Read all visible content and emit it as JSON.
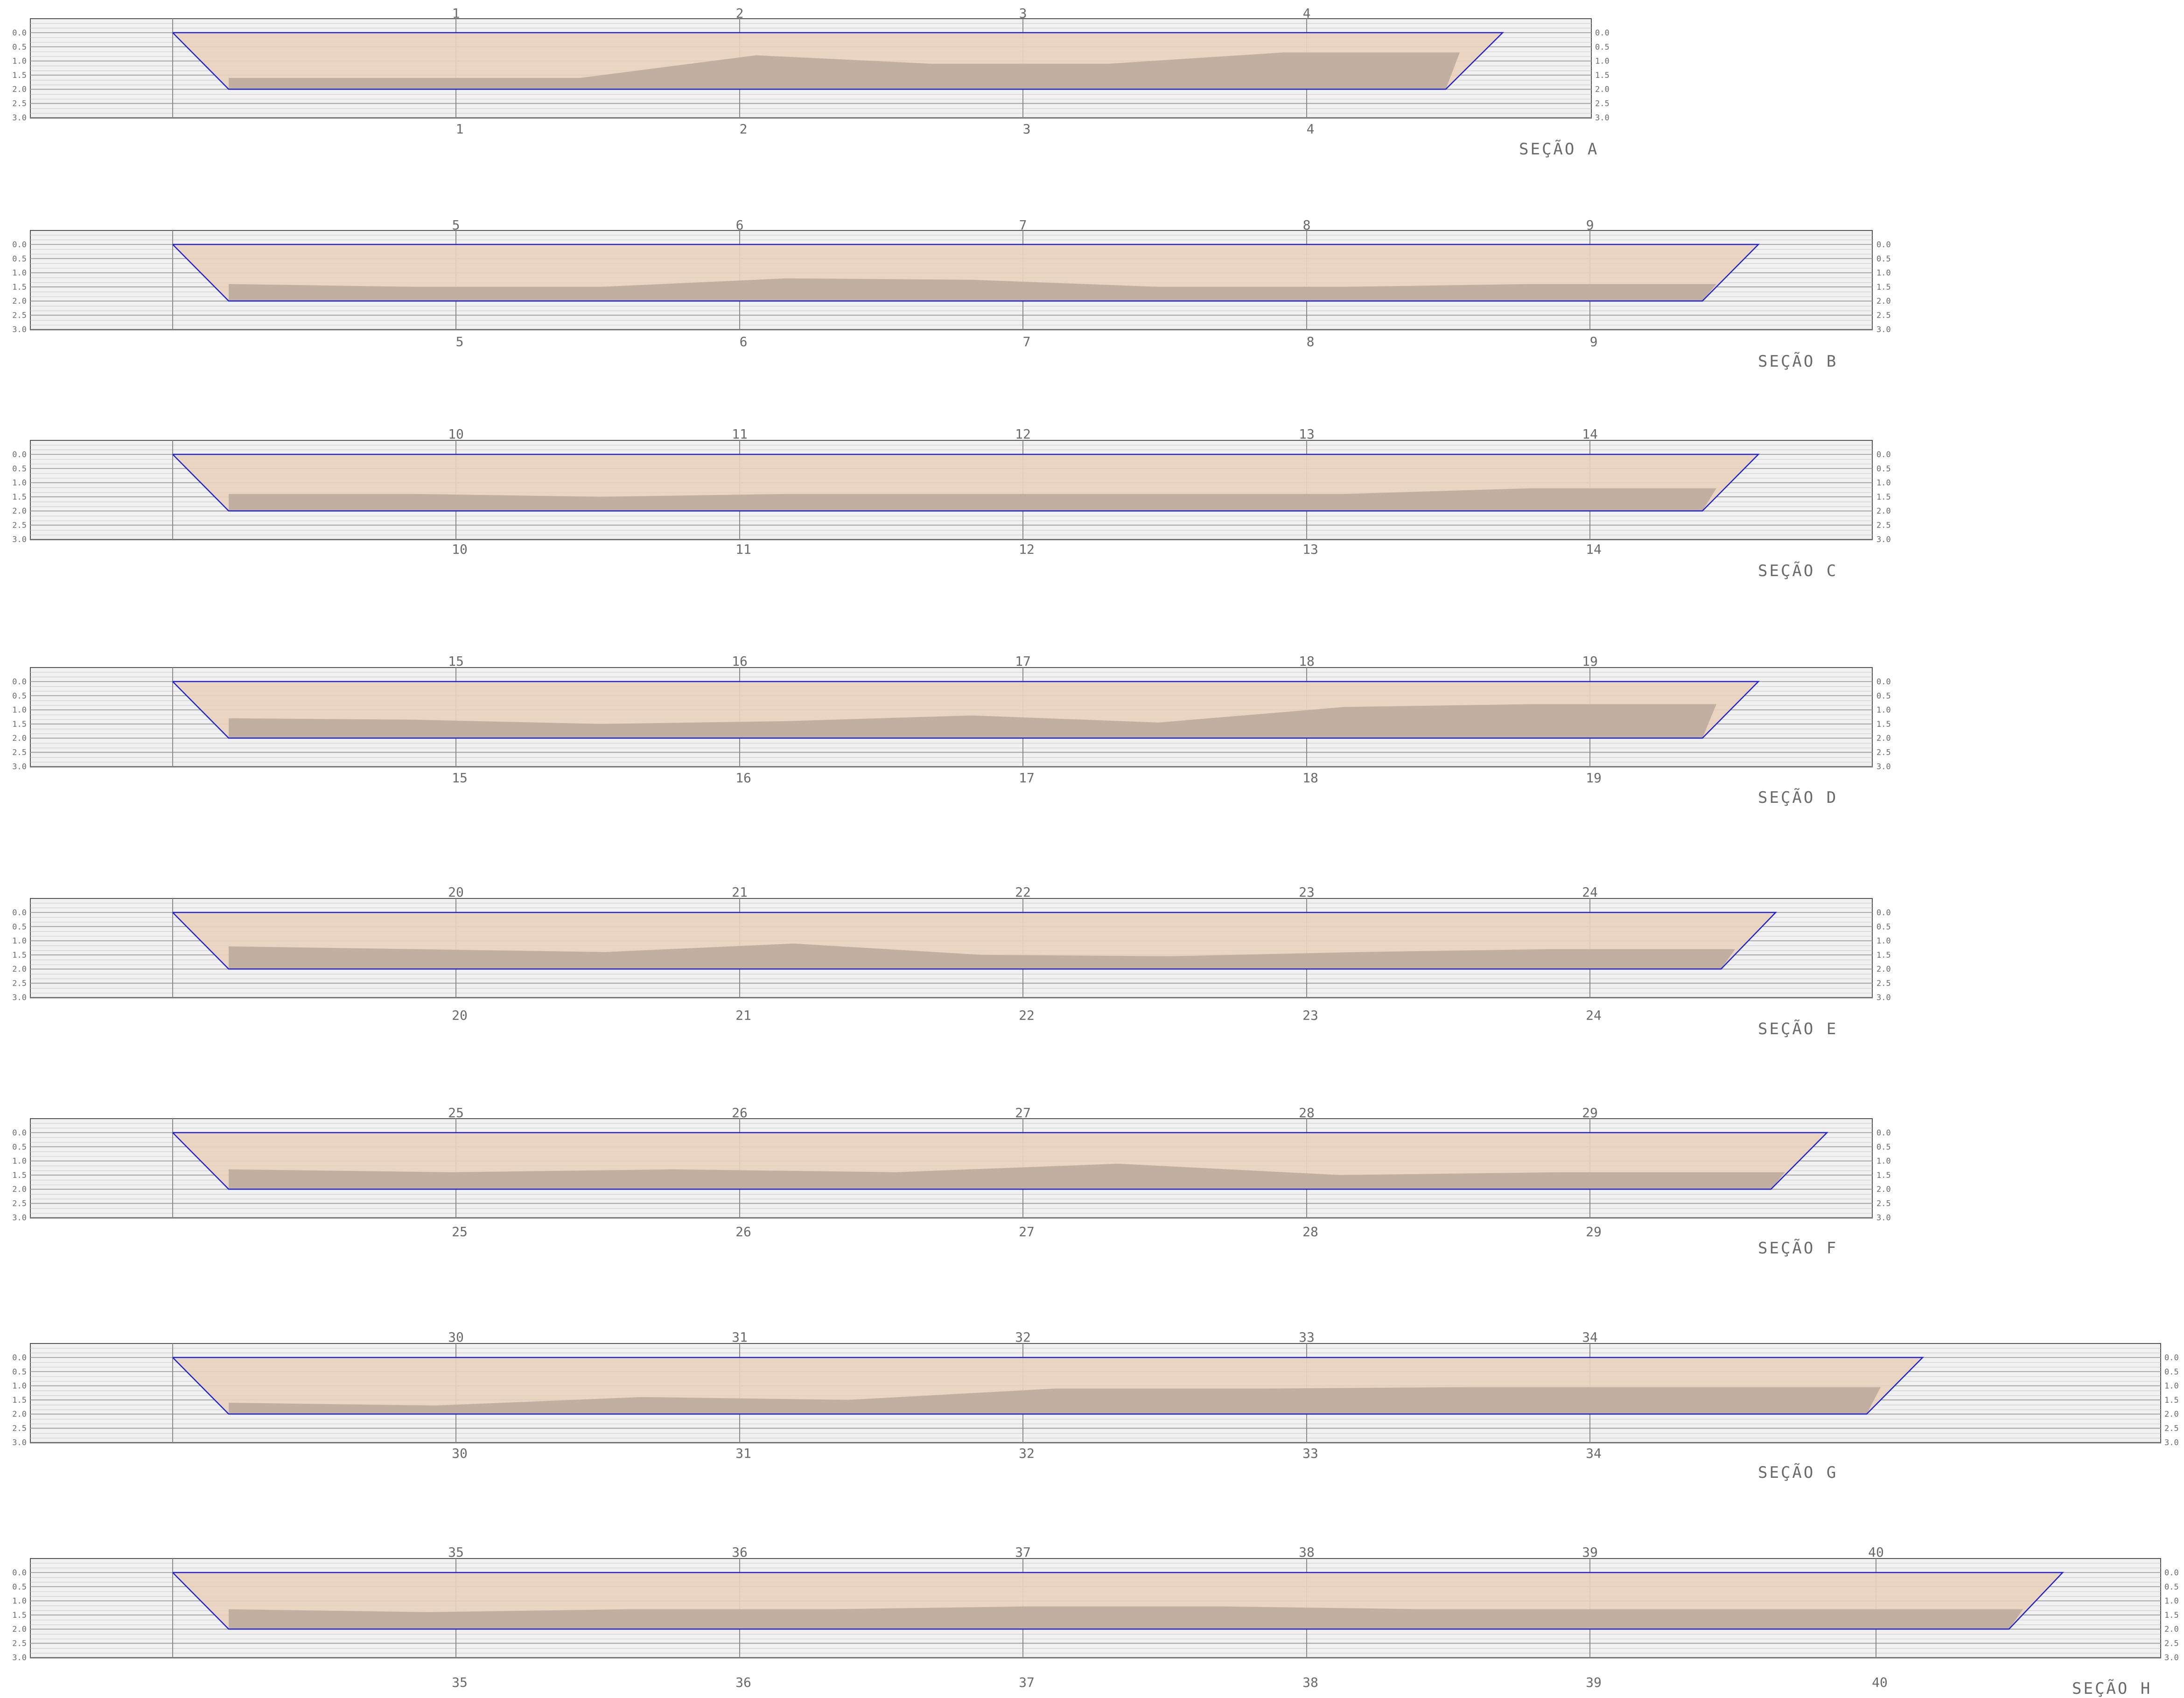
{
  "depth_ticks": [
    "0.0",
    "0.5",
    "1.0",
    "1.5",
    "2.0",
    "2.5",
    "3.0"
  ],
  "colors": {
    "frame": "#555555",
    "panel_background": "#f1f1f1",
    "grid_line": "#9a9a9a",
    "station_line": "#8a8a8a",
    "water_fill": "#e8d2bc",
    "sediment_fill": "#bfada0",
    "outline": "#2222cc",
    "label": "#6a6a6a"
  },
  "sections": [
    {
      "title": "SEÇÃO  A",
      "stations": [
        "1",
        "2",
        "3",
        "4"
      ],
      "bed_depths": [
        1.6,
        1.6,
        1.6,
        0.8,
        1.1,
        1.1,
        0.7,
        0.7
      ]
    },
    {
      "title": "SEÇÃO  B",
      "stations": [
        "5",
        "6",
        "7",
        "8",
        "9"
      ],
      "bed_depths": [
        1.4,
        1.5,
        1.5,
        1.2,
        1.25,
        1.5,
        1.5,
        1.4,
        1.4
      ]
    },
    {
      "title": "SEÇÃO  C",
      "stations": [
        "10",
        "11",
        "12",
        "13",
        "14"
      ],
      "bed_depths": [
        1.4,
        1.4,
        1.5,
        1.4,
        1.4,
        1.4,
        1.4,
        1.2,
        1.2
      ]
    },
    {
      "title": "SEÇÃO  D",
      "stations": [
        "15",
        "16",
        "17",
        "18",
        "19"
      ],
      "bed_depths": [
        1.3,
        1.35,
        1.5,
        1.4,
        1.2,
        1.45,
        0.9,
        0.8,
        0.8
      ]
    },
    {
      "title": "SEÇÃO  E",
      "stations": [
        "20",
        "21",
        "22",
        "23",
        "24"
      ],
      "bed_depths": [
        1.2,
        1.3,
        1.4,
        1.1,
        1.5,
        1.55,
        1.4,
        1.3,
        1.3
      ]
    },
    {
      "title": "SEÇÃO  F",
      "stations": [
        "25",
        "26",
        "27",
        "28",
        "29"
      ],
      "bed_depths": [
        1.3,
        1.4,
        1.3,
        1.4,
        1.1,
        1.5,
        1.4,
        1.4
      ]
    },
    {
      "title": "SEÇÃO  G",
      "stations": [
        "30",
        "31",
        "32",
        "33",
        "34"
      ],
      "bed_depths": [
        1.6,
        1.7,
        1.4,
        1.5,
        1.1,
        1.1,
        1.05,
        1.05,
        1.05
      ]
    },
    {
      "title": "SEÇÃO  H",
      "stations": [
        "35",
        "36",
        "37",
        "38",
        "39",
        "40"
      ],
      "bed_depths": [
        1.3,
        1.4,
        1.3,
        1.3,
        1.2,
        1.2,
        1.3,
        1.3,
        1.3,
        1.3
      ]
    }
  ]
}
